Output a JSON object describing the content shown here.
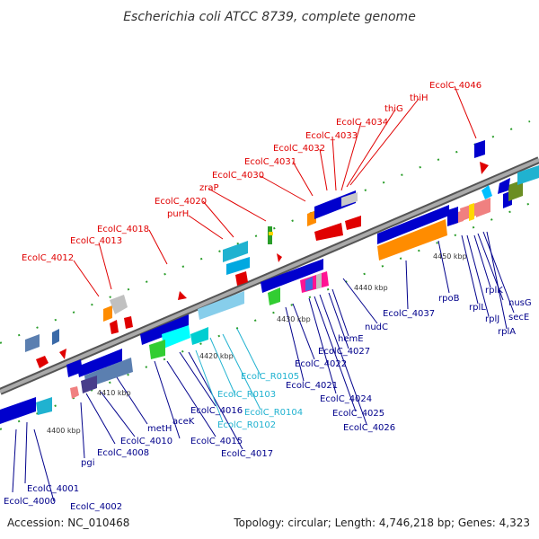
{
  "title": "Escherichia coli ATCC 8739, complete genome",
  "footer": {
    "accession": "Accession: NC_010468",
    "topology": "Topology: circular; Length: 4,746,218 bp; Genes: 4,323"
  },
  "kbp_ticks": [
    "4400 kbp",
    "4410 kbp",
    "4420 kbp",
    "4430 kbp",
    "4440 kbp",
    "4450 kbp"
  ],
  "labels_red": [
    "EcolC_4012",
    "EcolC_4013",
    "EcolC_4018",
    "purH",
    "EcolC_4020",
    "zraP",
    "EcolC_4030",
    "EcolC_4031",
    "EcolC_4032",
    "EcolC_4033",
    "EcolC_4034",
    "thiG",
    "thiH",
    "EcolC_4046"
  ],
  "labels_blue": [
    "EcolC_4000",
    "EcolC_4001",
    "EcolC_4002",
    "pgi",
    "EcolC_4008",
    "EcolC_4010",
    "metH",
    "aceK",
    "EcolC_4015",
    "EcolC_4016",
    "EcolC_4017",
    "EcolC_4021",
    "EcolC_4022",
    "EcolC_4024",
    "EcolC_4025",
    "EcolC_4026",
    "EcolC_4027",
    "hemE",
    "nudC",
    "EcolC_4037",
    "rpoB",
    "rplL",
    "rplJ",
    "rplK",
    "nusG",
    "secE",
    "rplA"
  ],
  "labels_cyan": [
    "EcolC_R0102",
    "EcolC_R0103",
    "EcolC_R0104",
    "EcolC_R0105"
  ],
  "colors": {
    "red_label": "#e00000",
    "blue_label": "#00008b",
    "cyan_label": "#20b2d0",
    "backbone": "#808080"
  }
}
